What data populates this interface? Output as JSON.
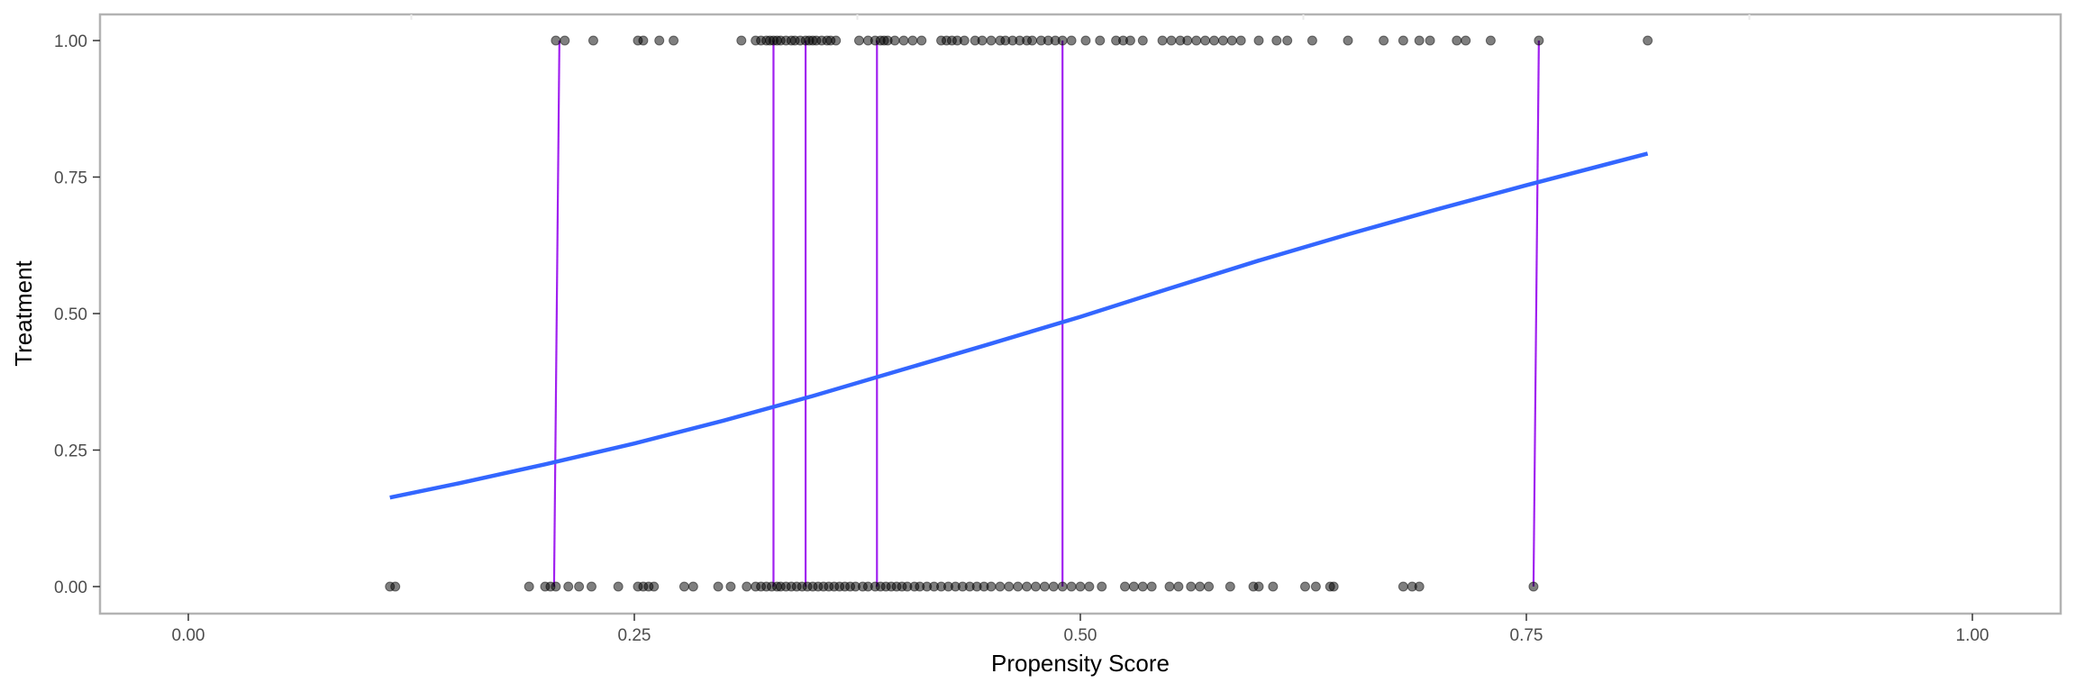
{
  "chart_data": {
    "type": "scatter",
    "title": "",
    "xlabel": "Propensity Score",
    "ylabel": "Treatment",
    "xlim": [
      -0.1,
      1.1
    ],
    "ylim": [
      -0.05,
      1.05
    ],
    "x_ticks": [
      "0.00",
      "0.25",
      "0.50",
      "0.75",
      "1.00"
    ],
    "y_ticks": [
      "0.00",
      "0.25",
      "0.50",
      "0.75",
      "1.00"
    ],
    "grid": false,
    "colors": {
      "points": "#000000",
      "curve": "#3366ff",
      "match_lines": "#a020f0",
      "panel_border": "#b3b3b3"
    },
    "treated_x": [
      0.206,
      0.211,
      0.227,
      0.252,
      0.255,
      0.264,
      0.272,
      0.31,
      0.318,
      0.321,
      0.324,
      0.326,
      0.328,
      0.33,
      0.332,
      0.335,
      0.338,
      0.34,
      0.343,
      0.346,
      0.348,
      0.35,
      0.352,
      0.355,
      0.358,
      0.36,
      0.363,
      0.376,
      0.381,
      0.385,
      0.388,
      0.39,
      0.392,
      0.396,
      0.401,
      0.406,
      0.411,
      0.422,
      0.425,
      0.428,
      0.431,
      0.435,
      0.441,
      0.445,
      0.45,
      0.455,
      0.458,
      0.462,
      0.466,
      0.47,
      0.473,
      0.478,
      0.482,
      0.486,
      0.49,
      0.495,
      0.503,
      0.511,
      0.52,
      0.524,
      0.528,
      0.535,
      0.546,
      0.551,
      0.556,
      0.56,
      0.565,
      0.57,
      0.575,
      0.58,
      0.585,
      0.59,
      0.6,
      0.61,
      0.616,
      0.63,
      0.65,
      0.67,
      0.681,
      0.69,
      0.696,
      0.711,
      0.716,
      0.73,
      0.757,
      0.818
    ],
    "control_x": [
      0.113,
      0.116,
      0.191,
      0.2,
      0.203,
      0.206,
      0.213,
      0.219,
      0.226,
      0.241,
      0.252,
      0.255,
      0.258,
      0.261,
      0.278,
      0.283,
      0.297,
      0.304,
      0.313,
      0.318,
      0.321,
      0.324,
      0.327,
      0.33,
      0.332,
      0.335,
      0.338,
      0.341,
      0.344,
      0.347,
      0.35,
      0.353,
      0.356,
      0.359,
      0.362,
      0.365,
      0.368,
      0.371,
      0.374,
      0.378,
      0.381,
      0.385,
      0.388,
      0.391,
      0.394,
      0.397,
      0.4,
      0.403,
      0.407,
      0.41,
      0.414,
      0.418,
      0.422,
      0.426,
      0.43,
      0.434,
      0.438,
      0.442,
      0.446,
      0.45,
      0.455,
      0.46,
      0.465,
      0.47,
      0.475,
      0.48,
      0.485,
      0.49,
      0.495,
      0.5,
      0.505,
      0.512,
      0.525,
      0.53,
      0.535,
      0.54,
      0.55,
      0.555,
      0.562,
      0.567,
      0.572,
      0.584,
      0.597,
      0.6,
      0.608,
      0.626,
      0.632,
      0.64,
      0.642,
      0.681,
      0.686,
      0.69,
      0.754
    ],
    "curve_x": [
      0.113,
      0.15,
      0.2,
      0.25,
      0.3,
      0.35,
      0.4,
      0.45,
      0.5,
      0.55,
      0.6,
      0.65,
      0.7,
      0.75,
      0.818
    ],
    "curve_y": [
      0.163,
      0.188,
      0.224,
      0.262,
      0.304,
      0.349,
      0.397,
      0.445,
      0.494,
      0.546,
      0.597,
      0.645,
      0.691,
      0.735,
      0.793
    ],
    "matched_pairs": [
      {
        "treated": 0.208,
        "control": 0.205
      },
      {
        "treated": 0.328,
        "control": 0.328
      },
      {
        "treated": 0.346,
        "control": 0.346
      },
      {
        "treated": 0.386,
        "control": 0.386
      },
      {
        "treated": 0.49,
        "control": 0.49
      },
      {
        "treated": 0.757,
        "control": 0.754
      }
    ]
  }
}
